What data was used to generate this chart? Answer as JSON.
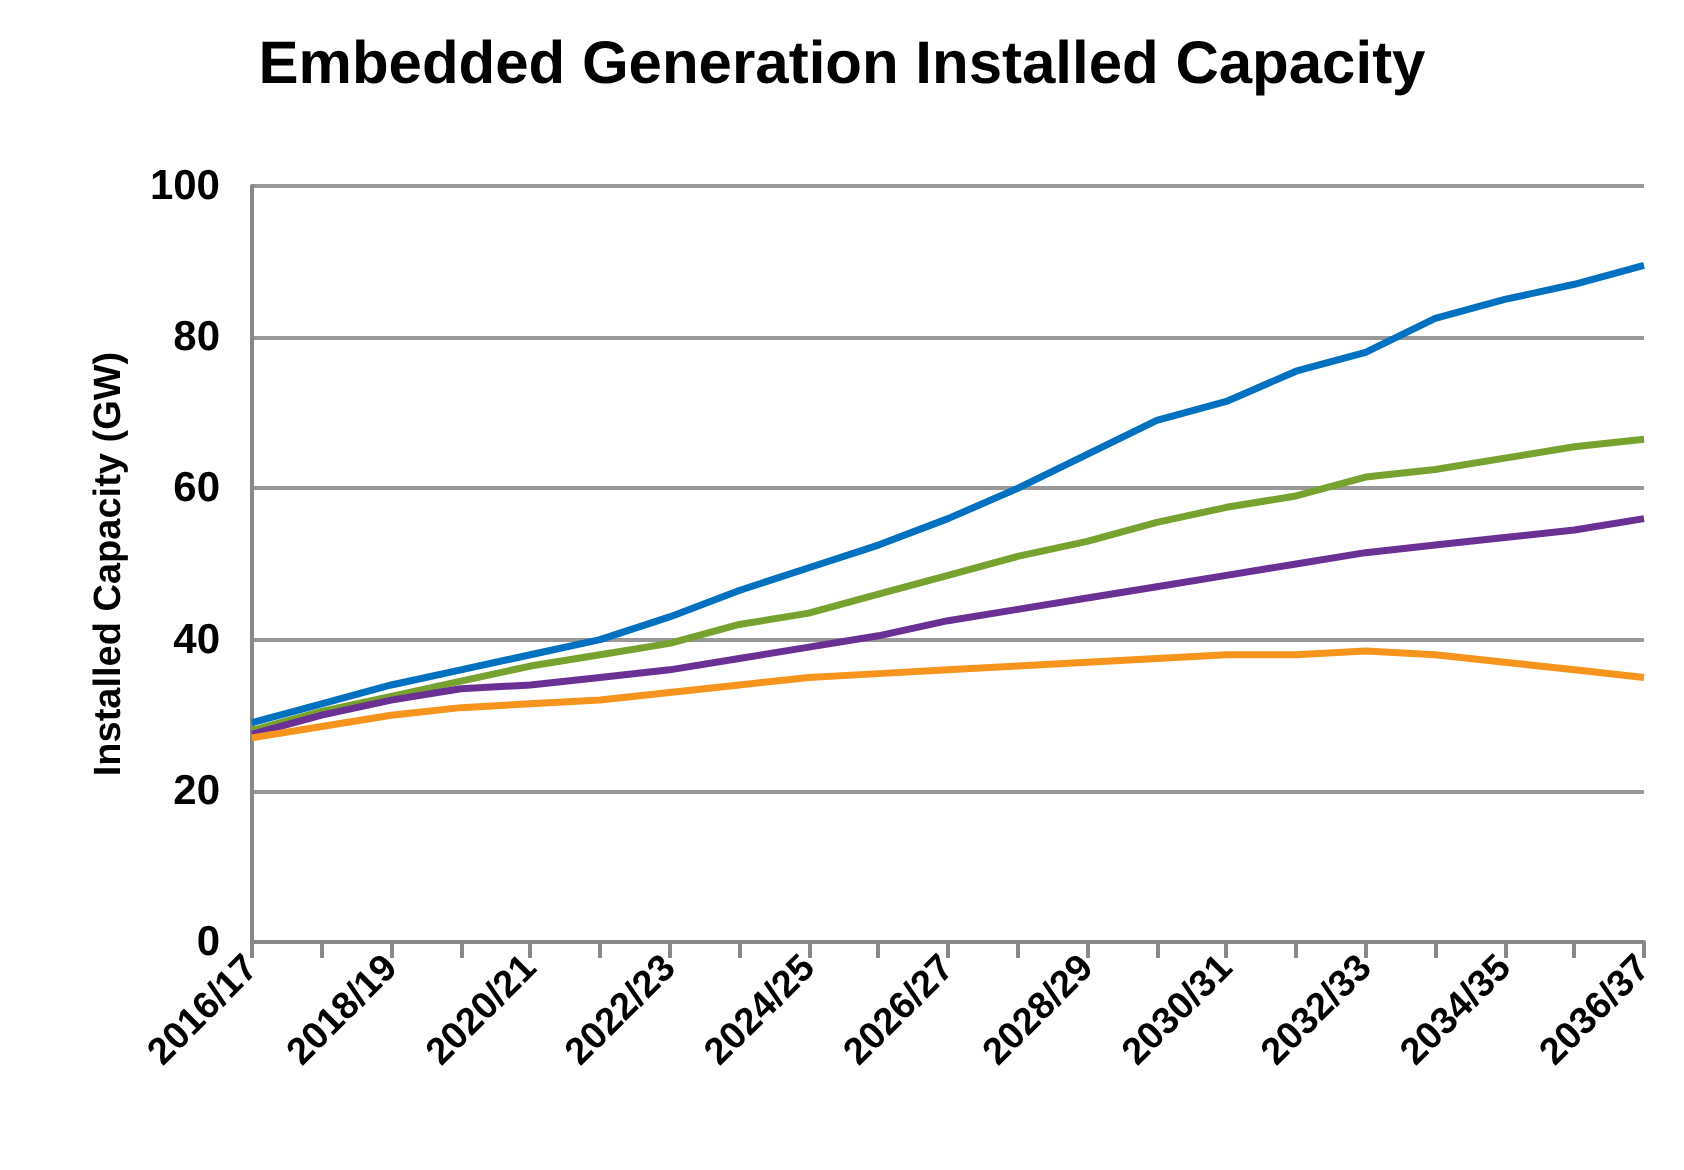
{
  "chart_data": {
    "type": "line",
    "title": "Embedded Generation Installed Capacity",
    "ylabel": "Installed Capacity (GW)",
    "categories": [
      "2016/17",
      null,
      "2018/19",
      null,
      "2020/21",
      null,
      "2022/23",
      null,
      "2024/25",
      null,
      "2026/27",
      null,
      "2028/29",
      null,
      "2030/31",
      null,
      "2032/33",
      null,
      "2034/35",
      null,
      "2036/37"
    ],
    "series": [
      {
        "color": "#0070c0",
        "values": [
          29,
          31.5,
          34,
          36,
          38,
          40,
          43,
          46.5,
          49.5,
          52.5,
          56,
          60,
          64.5,
          69,
          71.5,
          75.5,
          78,
          82.5,
          85,
          87,
          89.5
        ]
      },
      {
        "color": "#77a22f",
        "values": [
          28,
          30.5,
          32.5,
          34.5,
          36.5,
          38,
          39.5,
          42,
          43.5,
          46,
          48.5,
          51,
          53,
          55.5,
          57.5,
          59,
          61.5,
          62.5,
          64,
          65.5,
          66.5
        ]
      },
      {
        "color": "#6a3093",
        "values": [
          27.5,
          30,
          32,
          33.5,
          34,
          35,
          36,
          37.5,
          39,
          40.5,
          42.5,
          44,
          45.5,
          47,
          48.5,
          50,
          51.5,
          52.5,
          53.5,
          54.5,
          56
        ]
      },
      {
        "color": "#f7941d",
        "values": [
          27,
          28.5,
          30,
          31,
          31.5,
          32,
          33,
          34,
          35,
          35.5,
          36,
          36.5,
          37,
          37.5,
          38,
          38,
          38.5,
          38,
          37,
          36,
          35
        ]
      }
    ],
    "ylim": [
      0,
      100
    ],
    "yticks": [
      0,
      20,
      40,
      60,
      80,
      100
    ],
    "grid": "y",
    "marker": "none",
    "line_style": "solid"
  }
}
